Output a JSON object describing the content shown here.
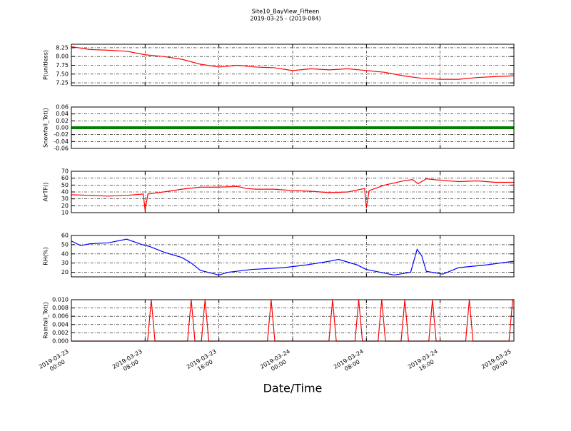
{
  "title": "Site10_BayView_Fifteen",
  "subtitle": "2019-03-25 - (2019-084)",
  "xlabel": "Date/Time",
  "xlim": [
    "2019-03-23 00:00",
    "2019-03-25 00:00"
  ],
  "xticks": [
    "2019-03-23 00:00",
    "2019-03-23 08:00",
    "2019-03-23 16:00",
    "2019-03-24 00:00",
    "2019-03-24 08:00",
    "2019-03-24 16:00",
    "2019-03-25 00:00"
  ],
  "chart_data": [
    {
      "type": "line",
      "ylabel": "P(unitless)",
      "color": "#ff0000",
      "grid": true,
      "ylim": [
        7.17,
        8.35
      ],
      "yticks": [
        7.25,
        {
          "value": 7.5,
          "label": "7.50"
        },
        7.75,
        {
          "value": 8,
          "label": "8.00"
        },
        8.25
      ],
      "x": [
        "2019-03-23 00:00",
        "2019-03-23 02:00",
        "2019-03-23 04:00",
        "2019-03-23 06:00",
        "2019-03-23 08:00",
        "2019-03-23 10:00",
        "2019-03-23 12:00",
        "2019-03-23 14:00",
        "2019-03-23 16:00",
        "2019-03-23 18:00",
        "2019-03-23 20:00",
        "2019-03-23 22:00",
        "2019-03-24 00:00",
        "2019-03-24 02:00",
        "2019-03-24 04:00",
        "2019-03-24 06:00",
        "2019-03-24 08:00",
        "2019-03-24 10:00",
        "2019-03-24 12:00",
        "2019-03-24 14:00",
        "2019-03-24 16:00",
        "2019-03-24 18:00",
        "2019-03-24 20:00",
        "2019-03-24 22:00",
        "2019-03-25 00:00"
      ],
      "values": [
        8.28,
        8.2,
        8.18,
        8.15,
        8.05,
        8.0,
        7.92,
        7.78,
        7.7,
        7.75,
        7.7,
        7.68,
        7.6,
        7.65,
        7.62,
        7.65,
        7.6,
        7.55,
        7.45,
        7.38,
        7.35,
        7.35,
        7.4,
        7.43,
        7.45
      ]
    },
    {
      "type": "line",
      "ylabel": "Snowfall_Tot()",
      "color": "#008000",
      "grid": true,
      "ylim": [
        -0.06,
        0.06
      ],
      "yticks": [
        -0.06,
        -0.04,
        -0.02,
        {
          "value": 0,
          "label": "0.00"
        },
        0.02,
        0.04,
        0.06
      ],
      "x": [
        "2019-03-23 00:00",
        "2019-03-23 02:00",
        "2019-03-23 04:00",
        "2019-03-23 06:00",
        "2019-03-23 08:00",
        "2019-03-23 10:00",
        "2019-03-23 12:00",
        "2019-03-23 14:00",
        "2019-03-23 16:00",
        "2019-03-23 18:00",
        "2019-03-23 20:00",
        "2019-03-23 22:00",
        "2019-03-24 00:00",
        "2019-03-24 02:00",
        "2019-03-24 04:00",
        "2019-03-24 06:00",
        "2019-03-24 08:00",
        "2019-03-24 10:00",
        "2019-03-24 12:00",
        "2019-03-24 14:00",
        "2019-03-24 16:00",
        "2019-03-24 18:00",
        "2019-03-24 20:00",
        "2019-03-24 22:00",
        "2019-03-25 00:00"
      ],
      "values": [
        0,
        0,
        0,
        0,
        0,
        0,
        0,
        0,
        0,
        0,
        0,
        0,
        0,
        0,
        0,
        0,
        0,
        0,
        0,
        0,
        0,
        0,
        0,
        0,
        0
      ]
    },
    {
      "type": "line",
      "ylabel": "AirTF()",
      "color": "#ff0000",
      "grid": true,
      "ylim": [
        10,
        70
      ],
      "yticks": [
        10,
        20,
        30,
        40,
        50,
        60,
        70
      ],
      "x": [
        "2019-03-23 00:00",
        "2019-03-23 02:00",
        "2019-03-23 04:00",
        "2019-03-23 06:00",
        "2019-03-23 07:48",
        "2019-03-23 08:00",
        "2019-03-23 08:18",
        "2019-03-23 10:00",
        "2019-03-23 12:00",
        "2019-03-23 14:00",
        "2019-03-23 16:00",
        "2019-03-23 18:00",
        "2019-03-23 19:00",
        "2019-03-23 20:00",
        "2019-03-23 22:00",
        "2019-03-24 00:00",
        "2019-03-24 02:00",
        "2019-03-24 04:00",
        "2019-03-24 06:00",
        "2019-03-24 07:48",
        "2019-03-24 08:00",
        "2019-03-24 08:18",
        "2019-03-24 10:00",
        "2019-03-24 12:00",
        "2019-03-24 13:00",
        "2019-03-24 13:36",
        "2019-03-24 14:30",
        "2019-03-24 16:00",
        "2019-03-24 18:00",
        "2019-03-24 20:00",
        "2019-03-24 22:00",
        "2019-03-25 00:00"
      ],
      "values": [
        36,
        35,
        34,
        35,
        37,
        13,
        37,
        40,
        44,
        47,
        47,
        48,
        45,
        44,
        44,
        42,
        41,
        39,
        40,
        45,
        17,
        42,
        50,
        56,
        58,
        52,
        59,
        57,
        55,
        56,
        54,
        54
      ]
    },
    {
      "type": "line",
      "ylabel": "RH(%)",
      "color": "#0000ff",
      "grid": true,
      "ylim": [
        15,
        60
      ],
      "yticks": [
        20,
        30,
        40,
        50,
        60
      ],
      "x": [
        "2019-03-23 00:00",
        "2019-03-23 01:00",
        "2019-03-23 02:00",
        "2019-03-23 04:00",
        "2019-03-23 06:00",
        "2019-03-23 07:42",
        "2019-03-23 08:30",
        "2019-03-23 10:00",
        "2019-03-23 12:00",
        "2019-03-23 13:00",
        "2019-03-23 14:00",
        "2019-03-23 16:00",
        "2019-03-23 17:00",
        "2019-03-23 19:30",
        "2019-03-23 23:00",
        "2019-03-24 01:30",
        "2019-03-24 04:00",
        "2019-03-24 05:00",
        "2019-03-24 07:00",
        "2019-03-24 08:00",
        "2019-03-24 11:00",
        "2019-03-24 12:48",
        "2019-03-24 13:30",
        "2019-03-24 14:00",
        "2019-03-24 14:30",
        "2019-03-24 16:18",
        "2019-03-24 18:00",
        "2019-03-24 21:00",
        "2019-03-25 00:00"
      ],
      "values": [
        54,
        49,
        51,
        52,
        56,
        50,
        48,
        42,
        36,
        30,
        22,
        17,
        20,
        23,
        25,
        28,
        32,
        34,
        28,
        23,
        17,
        20,
        45,
        38,
        21,
        18,
        25,
        28,
        32
      ]
    },
    {
      "type": "line",
      "ylabel": "Rainfall_Tot()",
      "color": "#ff0000",
      "grid": true,
      "ylim": [
        0,
        0.01
      ],
      "yticks": [
        {
          "value": 0,
          "label": "0.000"
        },
        {
          "value": 0.002,
          "label": "0.002"
        },
        {
          "value": 0.004,
          "label": "0.004"
        },
        {
          "value": 0.006,
          "label": "0.006"
        },
        {
          "value": 0.008,
          "label": "0.008"
        },
        {
          "value": 0.01,
          "label": "0.010"
        }
      ],
      "x": [
        "2019-03-23 00:00",
        "2019-03-23 08:16",
        "2019-03-23 08:40",
        "2019-03-23 09:04",
        "2019-03-23 12:36",
        "2019-03-23 13:00",
        "2019-03-23 13:24",
        "2019-03-23 14:06",
        "2019-03-23 14:30",
        "2019-03-23 14:54",
        "2019-03-23 21:16",
        "2019-03-23 21:40",
        "2019-03-23 22:04",
        "2019-03-24 03:56",
        "2019-03-24 04:20",
        "2019-03-24 04:44",
        "2019-03-24 06:46",
        "2019-03-24 07:10",
        "2019-03-24 07:34",
        "2019-03-24 09:16",
        "2019-03-24 09:40",
        "2019-03-24 10:04",
        "2019-03-24 11:46",
        "2019-03-24 12:10",
        "2019-03-24 12:34",
        "2019-03-24 14:46",
        "2019-03-24 15:10",
        "2019-03-24 15:34",
        "2019-03-24 18:46",
        "2019-03-24 19:10",
        "2019-03-24 19:34",
        "2019-03-24 23:28",
        "2019-03-24 23:52",
        "2019-03-25 00:00"
      ],
      "values": [
        0,
        0,
        0.01,
        0,
        0,
        0.01,
        0,
        0,
        0.01,
        0,
        0,
        0.01,
        0,
        0,
        0.01,
        0,
        0,
        0.01,
        0,
        0,
        0.01,
        0,
        0,
        0.01,
        0,
        0,
        0.01,
        0,
        0,
        0.01,
        0,
        0,
        0.01,
        0.01
      ]
    }
  ]
}
